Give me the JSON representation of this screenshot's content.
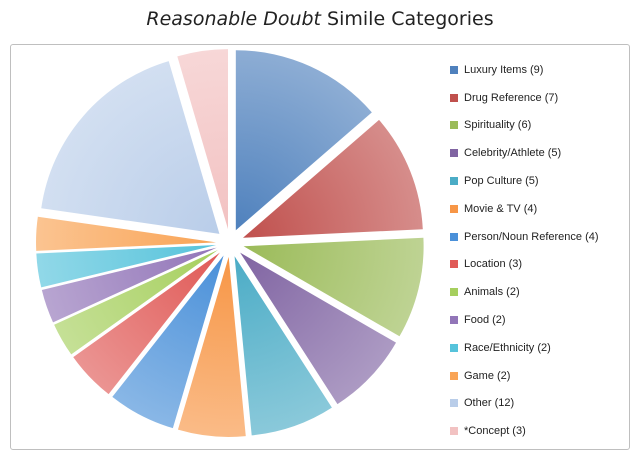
{
  "title": {
    "italic": "Reasonable Doubt",
    "rest": " Simile Categories"
  },
  "chart_data": {
    "type": "pie",
    "exploded": true,
    "legend_position": "right",
    "slices": [
      {
        "label": "Luxury Items (9)",
        "value": 9,
        "color": "#4f81bd"
      },
      {
        "label": "Drug Reference (7)",
        "value": 7,
        "color": "#c0504d"
      },
      {
        "label": "Spirituality (6)",
        "value": 6,
        "color": "#9bbb59"
      },
      {
        "label": "Celebrity/Athlete (5)",
        "value": 5,
        "color": "#8064a2"
      },
      {
        "label": "Pop Culture (5)",
        "value": 5,
        "color": "#4bacc6"
      },
      {
        "label": "Movie & TV (4)",
        "value": 4,
        "color": "#f79646"
      },
      {
        "label": "Person/Noun Reference (4)",
        "value": 4,
        "color": "#4a90d9"
      },
      {
        "label": "Location (3)",
        "value": 3,
        "color": "#e05a57"
      },
      {
        "label": "Animals (2)",
        "value": 2,
        "color": "#a6cf5e"
      },
      {
        "label": "Food (2)",
        "value": 2,
        "color": "#9275b8"
      },
      {
        "label": "Race/Ethnicity (2)",
        "value": 2,
        "color": "#56c3db"
      },
      {
        "label": "Game (2)",
        "value": 2,
        "color": "#f9a456"
      },
      {
        "label": "Other (12)",
        "value": 12,
        "color": "#b9cde9"
      },
      {
        "label": "*Concept (3)",
        "value": 3,
        "color": "#f2c2c2"
      }
    ]
  }
}
